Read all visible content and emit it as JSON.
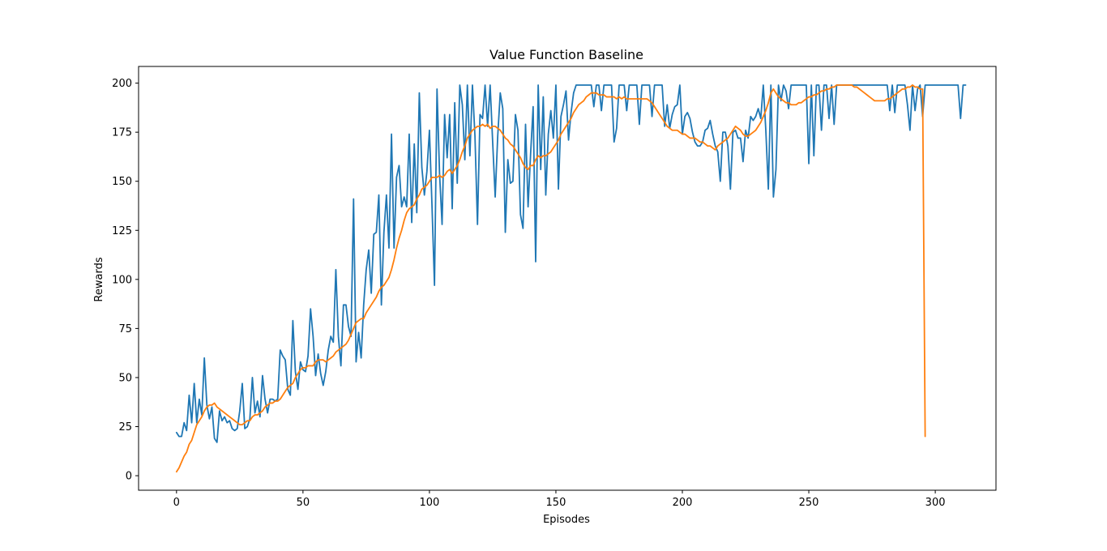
{
  "chart_data": {
    "type": "line",
    "title": "Value Function Baseline",
    "xlabel": "Episodes",
    "ylabel": "Rewards",
    "xlim": [
      -15,
      324
    ],
    "ylim": [
      -7.4,
      208.5
    ],
    "xticks": [
      0,
      50,
      100,
      150,
      200,
      250,
      300
    ],
    "yticks": [
      0,
      25,
      50,
      75,
      100,
      125,
      150,
      175,
      200
    ],
    "grid": false,
    "colors": {
      "series_1": "#1f77b4",
      "series_2": "#ff7f0e"
    },
    "series": [
      {
        "key": "series_1",
        "x_start": 0,
        "values": [
          22,
          20,
          20,
          27,
          23,
          41,
          27,
          47,
          27,
          39,
          31,
          60,
          36,
          29,
          35,
          19,
          17,
          33,
          28,
          30,
          27,
          28,
          24,
          23,
          24,
          33,
          47,
          24,
          25,
          29,
          50,
          32,
          38,
          30,
          51,
          39,
          32,
          39,
          39,
          38,
          39,
          64,
          61,
          59,
          44,
          41,
          79,
          53,
          44,
          58,
          54,
          53,
          61,
          85,
          71,
          51,
          62,
          52,
          46,
          53,
          64,
          71,
          68,
          105,
          71,
          56,
          87,
          87,
          76,
          71,
          141,
          58,
          73,
          60,
          87,
          105,
          115,
          93,
          123,
          124,
          143,
          87,
          124,
          143,
          116,
          174,
          116,
          152,
          158,
          137,
          142,
          137,
          174,
          129,
          169,
          134,
          195,
          157,
          143,
          155,
          176,
          138,
          97,
          197,
          154,
          128,
          184,
          162,
          184,
          136,
          190,
          149,
          199,
          189,
          161,
          199,
          163,
          199,
          173,
          128,
          184,
          182,
          199,
          178,
          199,
          170,
          142,
          173,
          195,
          187,
          124,
          161,
          149,
          150,
          184,
          176,
          133,
          126,
          179,
          137,
          164,
          188,
          109,
          199,
          156,
          193,
          143,
          174,
          186,
          172,
          199,
          146,
          183,
          189,
          196,
          171,
          185,
          195,
          199,
          199,
          199,
          199,
          199,
          199,
          199,
          188,
          199,
          199,
          186,
          199,
          199,
          199,
          199,
          170,
          177,
          199,
          199,
          199,
          186,
          199,
          199,
          199,
          199,
          179,
          199,
          199,
          199,
          199,
          183,
          199,
          199,
          199,
          199,
          178,
          189,
          177,
          184,
          188,
          189,
          199,
          174,
          183,
          185,
          182,
          175,
          170,
          168,
          168,
          170,
          176,
          177,
          181,
          174,
          168,
          165,
          150,
          175,
          175,
          168,
          146,
          175,
          176,
          172,
          172,
          160,
          176,
          172,
          183,
          181,
          183,
          187,
          182,
          199,
          176,
          146,
          199,
          142,
          156,
          199,
          191,
          199,
          196,
          187,
          199,
          199,
          199,
          199,
          199,
          199,
          199,
          159,
          199,
          163,
          199,
          199,
          176,
          199,
          199,
          182,
          199,
          179,
          199,
          199,
          199,
          199,
          199,
          199,
          199,
          199,
          199,
          199,
          199,
          199,
          199,
          199,
          199,
          199,
          199,
          199,
          199,
          199,
          199,
          186,
          199,
          185,
          199,
          199,
          199,
          199,
          189,
          176,
          199,
          186,
          197,
          199,
          183,
          199,
          199,
          199,
          199,
          199,
          199,
          199,
          199,
          199,
          199,
          199,
          199,
          199,
          199,
          182,
          199,
          199
        ]
      },
      {
        "key": "series_2",
        "x_start": 0,
        "values": [
          2,
          4,
          7,
          10,
          12,
          16,
          18,
          22,
          26,
          28,
          30,
          33,
          35,
          36,
          36,
          37,
          35,
          34,
          33,
          32,
          31,
          30,
          29,
          28,
          27,
          26,
          26,
          27,
          28,
          28,
          30,
          31,
          31,
          32,
          33,
          35,
          36,
          37,
          37,
          38,
          38,
          39,
          41,
          43,
          45,
          46,
          47,
          50,
          52,
          54,
          55,
          55,
          56,
          56,
          56,
          58,
          59,
          59,
          59,
          58,
          59,
          60,
          61,
          63,
          64,
          65,
          66,
          67,
          69,
          72,
          75,
          78,
          79,
          80,
          80,
          83,
          85,
          87,
          89,
          91,
          94,
          96,
          97,
          99,
          101,
          105,
          110,
          116,
          121,
          125,
          130,
          134,
          136,
          137,
          138,
          141,
          143,
          146,
          147,
          148,
          150,
          152,
          152,
          152,
          153,
          152,
          153,
          155,
          156,
          154,
          156,
          158,
          161,
          165,
          168,
          172,
          174,
          176,
          177,
          178,
          178,
          179,
          178,
          179,
          177,
          178,
          178,
          177,
          176,
          174,
          172,
          171,
          169,
          168,
          166,
          164,
          162,
          159,
          157,
          156,
          158,
          158,
          161,
          163,
          162,
          163,
          163,
          164,
          165,
          167,
          169,
          171,
          174,
          176,
          178,
          180,
          182,
          185,
          187,
          189,
          190,
          191,
          193,
          194,
          195,
          195,
          195,
          194,
          194,
          194,
          193,
          193,
          193,
          193,
          192,
          193,
          192,
          193,
          192,
          192,
          192,
          192,
          192,
          192,
          192,
          192,
          192,
          191,
          190,
          188,
          186,
          184,
          182,
          180,
          178,
          177,
          176,
          176,
          176,
          175,
          174,
          174,
          173,
          172,
          172,
          172,
          171,
          170,
          170,
          169,
          168,
          168,
          167,
          166,
          168,
          169,
          170,
          171,
          172,
          174,
          176,
          178,
          177,
          176,
          174,
          173,
          173,
          174,
          175,
          176,
          178,
          180,
          183,
          186,
          190,
          195,
          197,
          195,
          193,
          192,
          191,
          190,
          190,
          189,
          189,
          189,
          190,
          190,
          191,
          192,
          193,
          193,
          194,
          194,
          195,
          196,
          196,
          197,
          197,
          198,
          198,
          199,
          199,
          199,
          199,
          199,
          199,
          199,
          198,
          198,
          197,
          196,
          195,
          194,
          193,
          192,
          191,
          191,
          191,
          191,
          191,
          192,
          192,
          193,
          194,
          195,
          196,
          197,
          197,
          198,
          198,
          199,
          198,
          198,
          197,
          197,
          20
        ]
      }
    ]
  }
}
